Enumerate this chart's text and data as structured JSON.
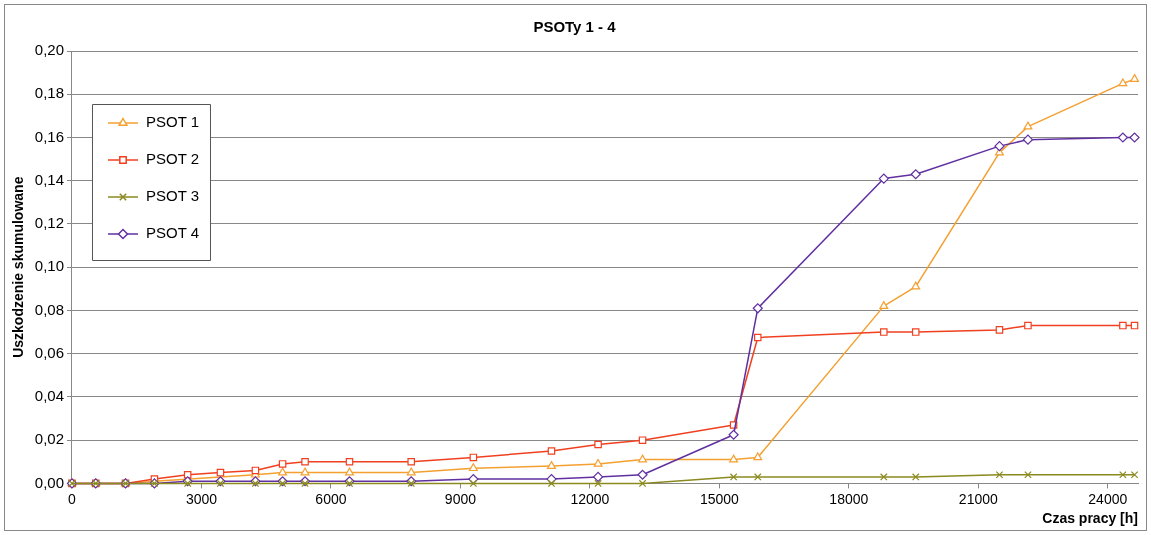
{
  "chart_data": {
    "type": "line",
    "title": "PSOTy 1 - 4",
    "xlabel": "Czas pracy [h]",
    "ylabel": "Uszkodzenie skumulowane",
    "x": [
      0,
      550,
      1240,
      1910,
      2680,
      3440,
      4250,
      4880,
      5400,
      6430,
      7860,
      9300,
      11110,
      12190,
      13220,
      15330,
      15890,
      18810,
      19550,
      21490,
      22150,
      24350,
      24620
    ],
    "series": [
      {
        "name": "PSOT 1",
        "color": "#f4a030",
        "marker": "triangle",
        "values": [
          0,
          0,
          0,
          0.001,
          null,
          null,
          0.004,
          0.005,
          0.005,
          0.005,
          0.005,
          0.007,
          0.008,
          0.009,
          0.011,
          0.011,
          0.012,
          0.082,
          0.091,
          0.153,
          0.165,
          0.185,
          0.187
        ]
      },
      {
        "name": "PSOT 2",
        "color": "#f04020",
        "marker": "square",
        "values": [
          0,
          0,
          0,
          0.002,
          0.004,
          0.005,
          0.006,
          0.009,
          0.01,
          0.01,
          0.01,
          0.012,
          0.015,
          0.018,
          0.02,
          0.027,
          0.0675,
          0.07,
          0.07,
          0.071,
          0.073,
          0.073,
          0.073
        ]
      },
      {
        "name": "PSOT 3",
        "color": "#8a8a20",
        "marker": "cross",
        "values": [
          0,
          0,
          0,
          0,
          0,
          0,
          0,
          0,
          0,
          0,
          0,
          0,
          0,
          0,
          0,
          0.003,
          0.003,
          0.003,
          0.003,
          0.004,
          0.004,
          0.004,
          0.004
        ]
      },
      {
        "name": "PSOT 4",
        "color": "#6030a0",
        "marker": "diamond",
        "values": [
          0,
          0,
          0,
          0,
          0.001,
          0.001,
          0.001,
          0.001,
          0.001,
          0.001,
          0.001,
          0.002,
          0.002,
          0.003,
          0.004,
          0.0225,
          0.081,
          0.141,
          0.143,
          0.156,
          0.159,
          0.16,
          0.16
        ]
      }
    ],
    "xlim": [
      0,
      24700
    ],
    "xticks": [
      0,
      3000,
      6000,
      9000,
      12000,
      15000,
      18000,
      21000,
      24000
    ],
    "ylim": [
      0,
      0.2
    ],
    "yticks": [
      {
        "value": 0,
        "label": "0,00"
      },
      {
        "value": 0.02,
        "label": "0,02"
      },
      {
        "value": 0.04,
        "label": "0,04"
      },
      {
        "value": 0.06,
        "label": "0,06"
      },
      {
        "value": 0.08,
        "label": "0,08"
      },
      {
        "value": 0.1,
        "label": "0,10"
      },
      {
        "value": 0.12,
        "label": "0,12"
      },
      {
        "value": 0.14,
        "label": "0,14"
      },
      {
        "value": 0.16,
        "label": "0,16"
      },
      {
        "value": 0.18,
        "label": "0,18"
      },
      {
        "value": 0.2,
        "label": "0,20"
      }
    ],
    "grid": "y",
    "legend": "top left",
    "line_style": "solid"
  }
}
